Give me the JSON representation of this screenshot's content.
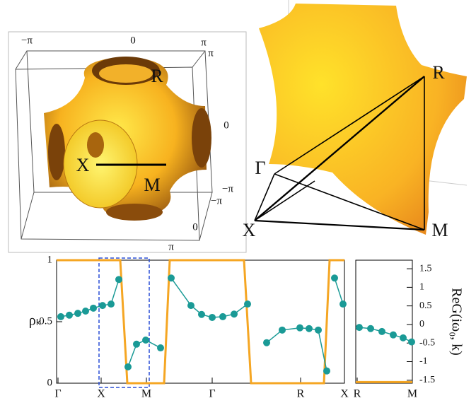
{
  "fermi_surface": {
    "left": {
      "axis_labels": [
        "−π",
        "0",
        "π",
        "π",
        "0",
        "−π",
        "−π",
        "0",
        "π"
      ],
      "points": [
        "R",
        "X",
        "M"
      ]
    },
    "right": {
      "points": [
        "R",
        "Γ",
        "X",
        "M"
      ]
    }
  },
  "chart_data": [
    {
      "type": "line",
      "ylabel": "ρₖ",
      "xlim": [
        -2,
        405
      ],
      "ylim": [
        0,
        1
      ],
      "y2lim": [
        -1.58,
        1.73
      ],
      "xticks": [
        {
          "value": 0,
          "label": "Γ"
        },
        {
          "value": 61,
          "label": "X"
        },
        {
          "value": 125,
          "label": "M"
        },
        {
          "value": 218,
          "label": "Γ"
        },
        {
          "value": 343,
          "label": "R"
        },
        {
          "value": 405,
          "label": "X"
        }
      ],
      "yticks": [
        0,
        0.5,
        1
      ],
      "series": [
        {
          "color": "#f5a623",
          "x": [
            -2,
            88,
            98,
            150,
            158,
            263,
            273,
            376,
            384,
            405
          ],
          "values": [
            1,
            1,
            0,
            0,
            1,
            1,
            0,
            0,
            1,
            1
          ]
        },
        {
          "color": "#1a9a96",
          "axis": "y2",
          "markers": true,
          "x": [
            4,
            16,
            28,
            39,
            50,
            63,
            75,
            86,
            92,
            99,
            111,
            124,
            145,
            152,
            160,
            188,
            203,
            218,
            233,
            249,
            268,
            280,
            295,
            317,
            342,
            355,
            368,
            380,
            386,
            391,
            403
          ],
          "values": [
            0.21,
            0.25,
            0.3,
            0.36,
            0.44,
            0.51,
            0.55,
            1.21,
            null,
            -1.14,
            -0.53,
            -0.42,
            -0.63,
            null,
            1.25,
            0.51,
            0.27,
            0.19,
            0.21,
            0.28,
            0.55,
            null,
            -0.49,
            -0.15,
            -0.09,
            -0.11,
            -0.15,
            -1.25,
            null,
            1.25,
            0.55
          ]
        }
      ]
    },
    {
      "type": "line",
      "y2label": "ReG(iω₀, k)",
      "xlim": [
        0,
        80
      ],
      "y2lim": [
        -1.58,
        1.73
      ],
      "xticks": [
        {
          "value": 2,
          "label": "R"
        },
        {
          "value": 80,
          "label": "M"
        }
      ],
      "y2ticks": [
        -1.5,
        -1,
        -0.5,
        0,
        0.5,
        1,
        1.5
      ],
      "series": [
        {
          "color": "#f5a623",
          "axis": "y2",
          "x": [
            0,
            80
          ],
          "values": [
            -1.55,
            -1.55
          ]
        },
        {
          "color": "#1a9a96",
          "axis": "y2",
          "markers": true,
          "x": [
            5,
            21,
            37,
            53,
            67,
            79
          ],
          "values": [
            -0.08,
            -0.11,
            -0.19,
            -0.28,
            -0.36,
            -0.47
          ]
        }
      ]
    }
  ]
}
